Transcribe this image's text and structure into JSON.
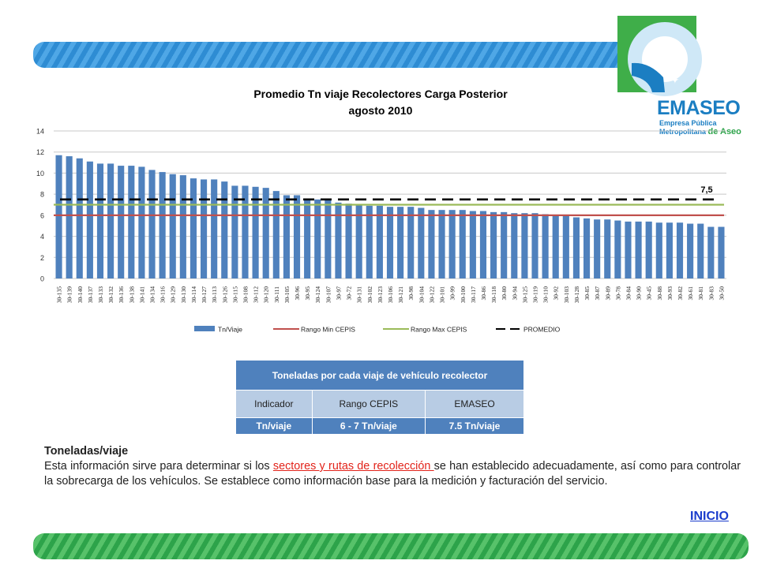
{
  "slide": {
    "logo": {
      "word": "EMASEO",
      "line1": "Empresa Pública",
      "line2a": "Metropolitana ",
      "line2b": "de Aseo"
    },
    "description": {
      "title": "Toneladas/viaje",
      "text_before": "Esta información sirve para determinar si los ",
      "link_text": "sectores y rutas de recolección ",
      "text_after": "se han establecido adecuadamente, así como para controlar la sobrecarga de los vehículos. Se establece como información base para la medición y facturación del servicio."
    },
    "inicio_label": "INICIO",
    "table": {
      "caption": "Toneladas por cada viaje  de vehículo recolector",
      "headers": [
        "Indicador",
        "Rango CEPIS",
        "EMASEO"
      ],
      "values": [
        "Tn/viaje",
        "6 - 7 Tn/viaje",
        "7.5 Tn/viaje"
      ]
    }
  },
  "chart_data": {
    "type": "bar",
    "title": "Promedio Tn viaje Recolectores Carga Posterior",
    "subtitle": "agosto 2010",
    "xlabel": "",
    "ylabel": "",
    "ylim": [
      0,
      14
    ],
    "yticks": [
      0,
      2,
      4,
      6,
      8,
      10,
      12,
      14
    ],
    "grid": true,
    "legend_position": "bottom",
    "categories": [
      "30-135",
      "30-139",
      "30-140",
      "30-137",
      "30-133",
      "30-132",
      "30-136",
      "30-138",
      "30-141",
      "30-134",
      "30-116",
      "30-129",
      "30-130",
      "30-114",
      "30-127",
      "30-113",
      "30-126",
      "30-115",
      "30-108",
      "30-112",
      "30-120",
      "30-111",
      "30-105",
      "30-96",
      "30-95",
      "30-124",
      "30-107",
      "30-97",
      "30-72",
      "30-131",
      "30-102",
      "30-123",
      "30-106",
      "30-121",
      "30-98",
      "30-104",
      "30-122",
      "30-101",
      "30-99",
      "30-100",
      "30-117",
      "30-86",
      "30-118",
      "30-80",
      "30-94",
      "30-125",
      "30-119",
      "30-110",
      "30-92",
      "30-103",
      "30-128",
      "30-85",
      "30-87",
      "30-89",
      "30-78",
      "30-84",
      "30-90",
      "30-45",
      "30-88",
      "30-93",
      "30-82",
      "30-61",
      "30-81",
      "30-83",
      "30-50"
    ],
    "series": [
      {
        "name": "Tn/Viaje",
        "type": "bar",
        "color": "#4f81bd",
        "values": [
          11.7,
          11.6,
          11.4,
          11.1,
          10.9,
          10.9,
          10.7,
          10.7,
          10.6,
          10.3,
          10.1,
          9.9,
          9.8,
          9.5,
          9.4,
          9.4,
          9.2,
          8.8,
          8.8,
          8.7,
          8.6,
          8.3,
          7.9,
          7.9,
          7.6,
          7.5,
          7.5,
          7.2,
          7.1,
          7.0,
          6.9,
          6.9,
          6.8,
          6.8,
          6.8,
          6.7,
          6.5,
          6.5,
          6.5,
          6.5,
          6.4,
          6.4,
          6.3,
          6.3,
          6.2,
          6.2,
          6.2,
          6.1,
          6.0,
          6.0,
          5.8,
          5.7,
          5.6,
          5.6,
          5.5,
          5.4,
          5.4,
          5.4,
          5.3,
          5.3,
          5.3,
          5.2,
          5.2,
          4.9,
          4.9
        ]
      },
      {
        "name": "Rango Min CEPIS",
        "type": "line",
        "color": "#c0504d",
        "value": 6
      },
      {
        "name": "Rango Max CEPIS",
        "type": "line",
        "color": "#9bbb59",
        "value": 7
      },
      {
        "name": "PROMEDIO",
        "type": "dashed-line",
        "color": "#000000",
        "value": 7.5,
        "label": "7,5"
      }
    ]
  }
}
